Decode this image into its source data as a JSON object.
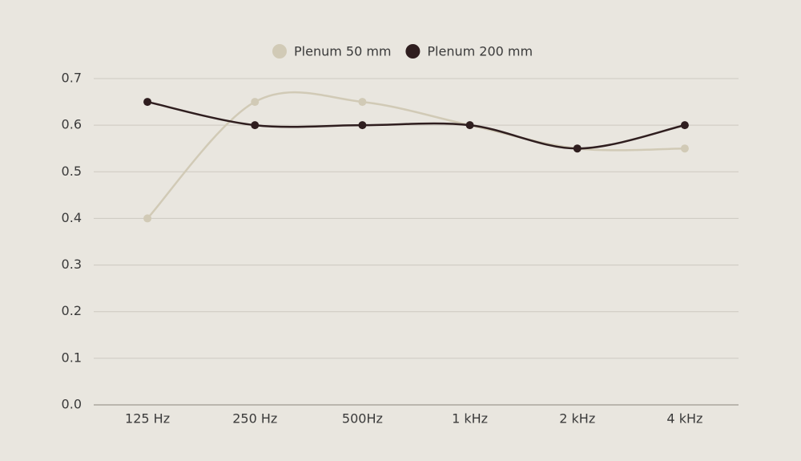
{
  "chart_data": {
    "type": "line",
    "categories": [
      "125 Hz",
      "250 Hz",
      "500Hz",
      "1 kHz",
      "2 kHz",
      "4 kHz"
    ],
    "series": [
      {
        "name": "Plenum 50 mm",
        "color": "#d1cab6",
        "values": [
          0.4,
          0.65,
          0.65,
          0.6,
          0.55,
          0.55
        ]
      },
      {
        "name": "Plenum 200 mm",
        "color": "#2f1e1f",
        "values": [
          0.65,
          0.6,
          0.6,
          0.6,
          0.55,
          0.6
        ]
      }
    ],
    "ylim": [
      0,
      0.7
    ],
    "yticks": [
      {
        "value": 0,
        "label": "0.0"
      },
      0.1,
      0.2,
      0.3,
      0.4,
      0.5,
      0.6,
      0.7
    ],
    "grid": true,
    "legend": "top",
    "smooth": true
  }
}
